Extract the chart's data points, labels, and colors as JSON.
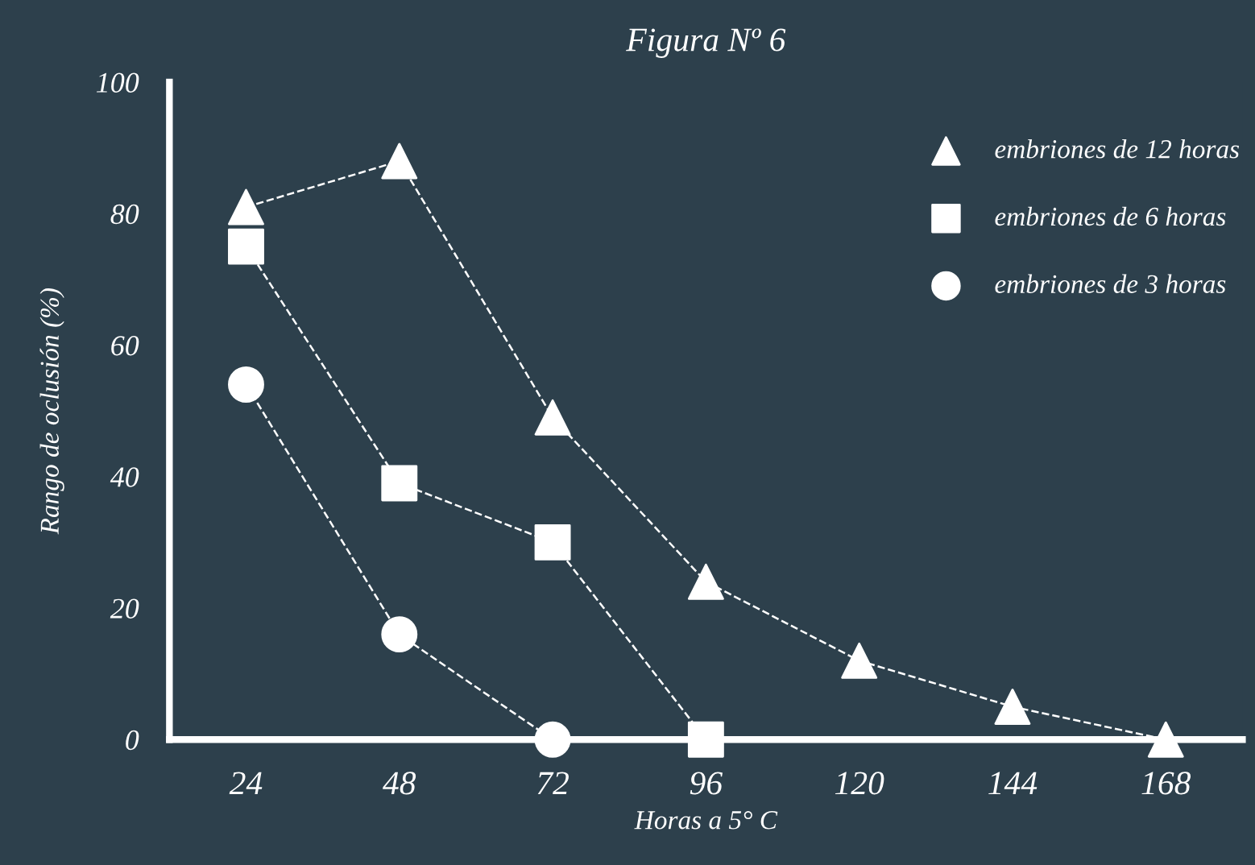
{
  "chart_data": {
    "type": "line",
    "title": "Figura Nº 6",
    "xlabel": "Horas a 5° C",
    "ylabel": "Rango de oclusión (%)",
    "categories": [
      "24",
      "48",
      "72",
      "96",
      "120",
      "144",
      "168"
    ],
    "ylim": [
      0,
      100
    ],
    "yticks": [
      0,
      20,
      40,
      60,
      80,
      100
    ],
    "grid": false,
    "legend": "top right",
    "line_style": "dashed",
    "series": [
      {
        "name": "embriones de 12 horas",
        "color": "#ffffff",
        "marker": "triangle",
        "values": [
          81,
          88,
          49,
          24,
          12,
          5,
          0
        ]
      },
      {
        "name": "embriones de 6 horas",
        "color": "#ffffff",
        "marker": "square",
        "values": [
          75,
          39,
          30,
          0,
          null,
          null,
          null
        ]
      },
      {
        "name": "embriones de 3 horas",
        "color": "#ffffff",
        "marker": "circle",
        "values": [
          54,
          16,
          0,
          null,
          null,
          null,
          null
        ]
      }
    ]
  }
}
